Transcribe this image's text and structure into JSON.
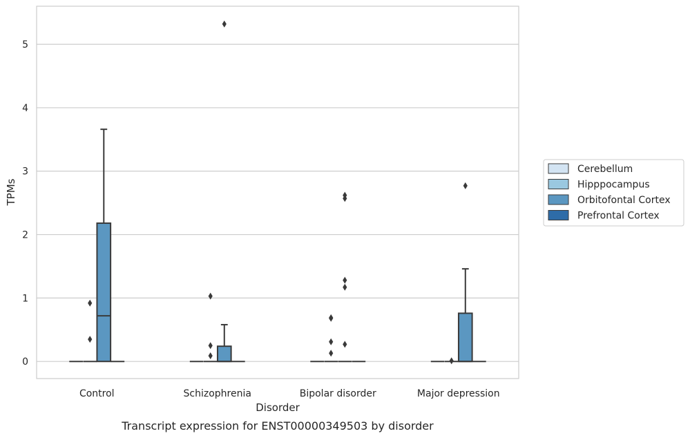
{
  "chart_data": {
    "type": "box",
    "caption": "Transcript expression for ENST00000349503 by disorder",
    "xlabel": "Disorder",
    "ylabel": "TPMs",
    "ylim": [
      -0.27,
      5.6
    ],
    "yticks": [
      0,
      1,
      2,
      3,
      4,
      5
    ],
    "grid": "horizontal",
    "legend_position": "right",
    "categories": [
      "Control",
      "Schizophrenia",
      "Bipolar disorder",
      "Major depression"
    ],
    "series": [
      {
        "name": "Cerebellum",
        "color": "#d3e4f3",
        "boxes": [
          {
            "whislo": 0,
            "q1": 0,
            "med": 0,
            "q3": 0,
            "whishi": 0,
            "fliers": []
          },
          {
            "whislo": 0,
            "q1": 0,
            "med": 0,
            "q3": 0,
            "whishi": 0,
            "fliers": []
          },
          {
            "whislo": 0,
            "q1": 0,
            "med": 0,
            "q3": 0,
            "whishi": 0,
            "fliers": []
          },
          {
            "whislo": 0,
            "q1": 0,
            "med": 0,
            "q3": 0,
            "whishi": 0,
            "fliers": []
          }
        ]
      },
      {
        "name": "Hipppocampus",
        "color": "#9ac8e0",
        "boxes": [
          {
            "whislo": 0,
            "q1": 0,
            "med": 0,
            "q3": 0,
            "whishi": 0,
            "fliers": [
              0.92,
              0.35
            ]
          },
          {
            "whislo": 0,
            "q1": 0,
            "med": 0,
            "q3": 0,
            "whishi": 0,
            "fliers": [
              0.25,
              0.09,
              1.03
            ]
          },
          {
            "whislo": 0,
            "q1": 0,
            "med": 0,
            "q3": 0,
            "whishi": 0,
            "fliers": [
              0.69,
              0.68,
              0.31,
              0.13
            ]
          },
          {
            "whislo": 0,
            "q1": 0,
            "med": 0,
            "q3": 0,
            "whishi": 0,
            "fliers": [
              0.01
            ]
          }
        ]
      },
      {
        "name": "Orbitofontal Cortex",
        "color": "#5b97c1",
        "boxes": [
          {
            "whislo": 0,
            "q1": 0,
            "med": 0.72,
            "q3": 2.18,
            "whishi": 3.66,
            "fliers": []
          },
          {
            "whislo": 0,
            "q1": 0,
            "med": 0,
            "q3": 0.24,
            "whishi": 0.58,
            "fliers": [
              5.32
            ]
          },
          {
            "whislo": 0,
            "q1": 0,
            "med": 0,
            "q3": 0,
            "whishi": 0,
            "fliers": [
              2.62,
              2.57,
              1.28,
              1.17,
              0.27
            ]
          },
          {
            "whislo": 0,
            "q1": 0,
            "med": 0,
            "q3": 0.76,
            "whishi": 1.46,
            "fliers": [
              2.77
            ]
          }
        ]
      },
      {
        "name": "Prefrontal Cortex",
        "color": "#2e6ca8",
        "boxes": [
          {
            "whislo": 0,
            "q1": 0,
            "med": 0,
            "q3": 0,
            "whishi": 0,
            "fliers": []
          },
          {
            "whislo": 0,
            "q1": 0,
            "med": 0,
            "q3": 0,
            "whishi": 0,
            "fliers": []
          },
          {
            "whislo": 0,
            "q1": 0,
            "med": 0,
            "q3": 0,
            "whishi": 0,
            "fliers": []
          },
          {
            "whislo": 0,
            "q1": 0,
            "med": 0,
            "q3": 0,
            "whishi": 0,
            "fliers": []
          }
        ]
      }
    ]
  }
}
